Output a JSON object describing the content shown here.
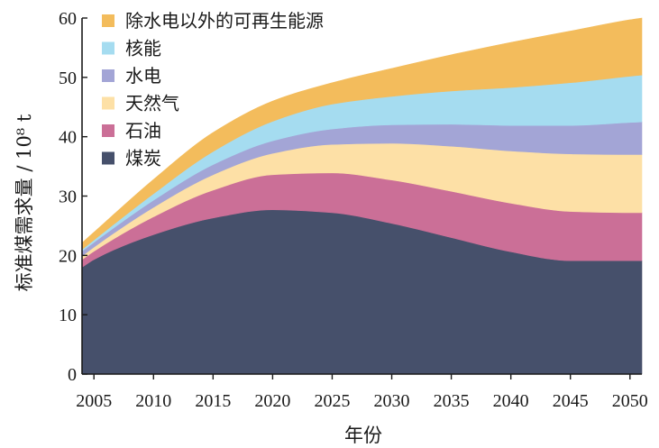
{
  "chart_data": {
    "type": "area",
    "stacked": true,
    "title": "",
    "xlabel": "年份",
    "ylabel": "标准煤需求量 / 10⁸ t",
    "xlim": [
      2004,
      2051
    ],
    "ylim": [
      0,
      60
    ],
    "x": [
      2004,
      2005,
      2010,
      2015,
      2020,
      2025,
      2030,
      2035,
      2040,
      2045,
      2050,
      2051
    ],
    "x_ticks": [
      "2005",
      "2010",
      "2015",
      "2020",
      "2025",
      "2030",
      "2035",
      "2040",
      "2045",
      "2050"
    ],
    "y_ticks": [
      "0",
      "10",
      "20",
      "30",
      "40",
      "50",
      "60"
    ],
    "legend_position": "top-left",
    "series": [
      {
        "name": "煤炭",
        "color": "#46506b",
        "values": [
          18.0,
          19.3,
          23.5,
          26.3,
          27.7,
          27.2,
          25.4,
          23.0,
          20.6,
          19.1,
          19.1,
          19.1
        ]
      },
      {
        "name": "石油",
        "color": "#cb6f97",
        "values": [
          1.3,
          1.4,
          3.0,
          4.7,
          5.9,
          6.7,
          7.3,
          7.8,
          8.2,
          8.3,
          8.1,
          8.1
        ]
      },
      {
        "name": "天然气",
        "color": "#fde0a6",
        "values": [
          0.6,
          0.7,
          1.6,
          2.6,
          3.6,
          4.8,
          6.2,
          7.6,
          8.8,
          9.7,
          9.8,
          9.8
        ]
      },
      {
        "name": "水电",
        "color": "#a3a5d6",
        "values": [
          0.8,
          0.8,
          1.2,
          1.7,
          2.1,
          2.6,
          3.1,
          3.7,
          4.3,
          4.8,
          5.4,
          5.5
        ]
      },
      {
        "name": "核能",
        "color": "#a5dcf0",
        "values": [
          0.3,
          0.4,
          1.1,
          2.2,
          3.3,
          4.2,
          4.8,
          5.6,
          6.4,
          7.2,
          7.8,
          7.9
        ]
      },
      {
        "name": "除水电以外的可再生能源",
        "color": "#f3bc5c",
        "values": [
          1.1,
          1.3,
          2.4,
          3.2,
          3.4,
          3.6,
          4.7,
          6.1,
          7.6,
          8.7,
          9.5,
          9.6
        ]
      }
    ],
    "legend_order": [
      "除水电以外的可再生能源",
      "核能",
      "水电",
      "天然气",
      "石油",
      "煤炭"
    ]
  }
}
